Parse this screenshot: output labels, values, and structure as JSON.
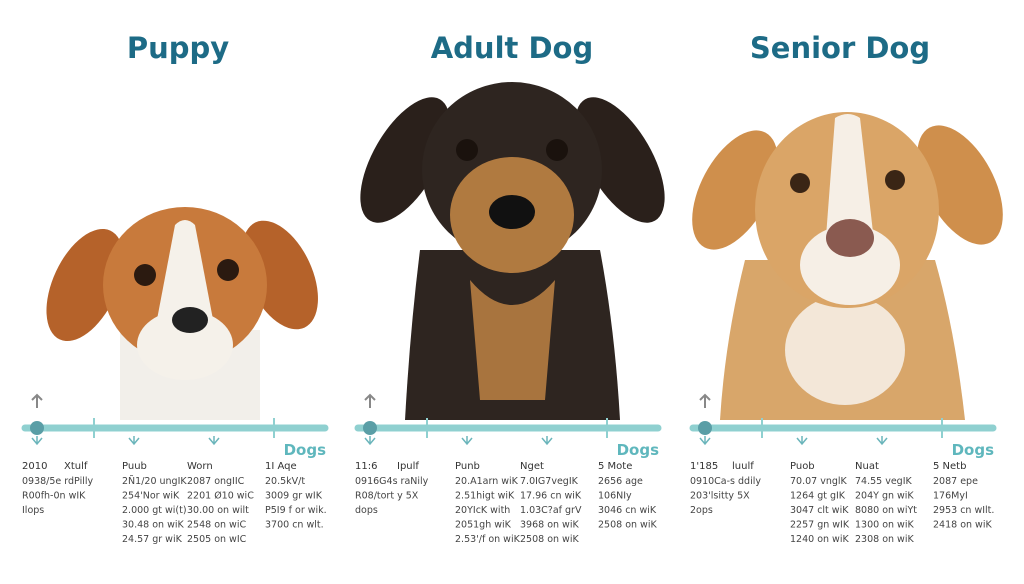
{
  "panels": [
    {
      "title": "Puppy",
      "axis_label": "Dogs",
      "columns": [
        {
          "header": "2010",
          "lines": [
            "0938/5e rdPilly",
            "R00fh-0n wIK",
            "Ilops"
          ]
        },
        {
          "header": "Xtulf",
          "lines": []
        },
        {
          "header": "Puub",
          "lines": [
            "2Ñ1/20 ungIK",
            "254'Nor wiK",
            "2.000 gt wi(t)",
            "30.48 on wiK",
            "24.57 gr wiK"
          ]
        },
        {
          "header": "Worn",
          "lines": [
            "2087 ongIIC",
            "2201 Ø10 wiC",
            "30.00 on wilt",
            "2548 on wiC",
            "2505 on wIC"
          ]
        },
        {
          "header": "1I Aqe",
          "lines": [
            "20.5kV/t",
            "3009 gr wIK",
            "P5I9 f or wik.",
            "3700 cn wlt."
          ]
        }
      ]
    },
    {
      "title": "Adult Dog",
      "axis_label": "Dogs",
      "columns": [
        {
          "header": "11:6",
          "lines": [
            "0916G4s raNily",
            "R08/tort y 5X",
            "dops"
          ]
        },
        {
          "header": "Ipulf",
          "lines": []
        },
        {
          "header": "Punb",
          "lines": [
            "20.A1arn wiK",
            "2.51higt wiK",
            "20YIcK with",
            "2051gh wiK",
            "2.53'/f on wiK"
          ]
        },
        {
          "header": "Nget",
          "lines": [
            "7.0IG7vegIK",
            "17.96 cn wiK",
            "1.03C?af grV",
            "3968 on wiK",
            "2508 on wiK"
          ]
        },
        {
          "header": "5 Mote",
          "lines": [
            "2656 age",
            "106NIy",
            "3046 cn wiK",
            "2508 on wiK"
          ]
        }
      ]
    },
    {
      "title": "Senior Dog",
      "axis_label": "Dogs",
      "columns": [
        {
          "header": "1'185",
          "lines": [
            "0910Ca-s ddily",
            "203'lsitty 5X",
            "2ops"
          ]
        },
        {
          "header": "luulf",
          "lines": []
        },
        {
          "header": "Puob",
          "lines": [
            "70.07 vnglK",
            "1264 gt gIK",
            "3047 clt wiK",
            "2257 gn wIK",
            "1240 on wiK"
          ]
        },
        {
          "header": "Nuat",
          "lines": [
            "74.55 vegIK",
            "204Y gn wiK",
            "8080 on wiYt",
            "1300 on wiK",
            "2308 on wiK"
          ]
        },
        {
          "header": "5 Netb",
          "lines": [
            "2087 epe",
            "176MyI",
            "2953 cn wIlt.",
            "2418 on wiK"
          ]
        }
      ]
    }
  ]
}
